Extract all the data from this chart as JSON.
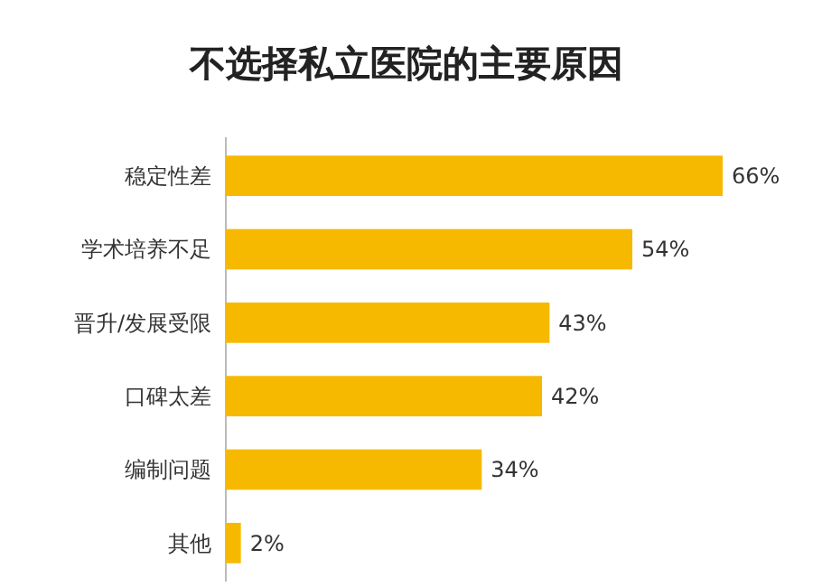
{
  "chart_data": {
    "type": "bar",
    "orientation": "horizontal",
    "title": "不选择私立医院的主要原因",
    "categories": [
      "稳定性差",
      "学术培养不足",
      "晋升/发展受限",
      "口碑太差",
      "编制问题",
      "其他"
    ],
    "values": [
      66,
      54,
      43,
      42,
      34,
      2
    ],
    "value_labels": [
      "66%",
      "54%",
      "43%",
      "42%",
      "34%",
      "2%"
    ],
    "color": "#f6b900"
  }
}
